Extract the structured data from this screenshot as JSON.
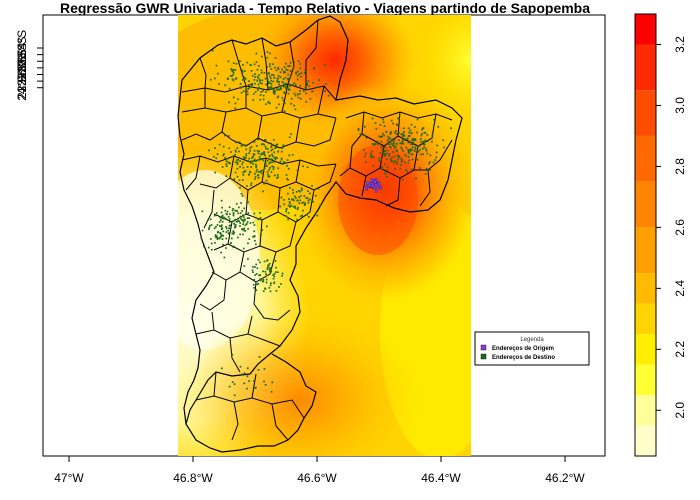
{
  "title": "Regressão GWR Univariada - Tempo Relativo - Viagens partindo de Sapopemba",
  "x_axis": {
    "ticks": [
      {
        "value": -47.0,
        "label": "47°W"
      },
      {
        "value": -46.8,
        "label": "46.8°W"
      },
      {
        "value": -46.6,
        "label": "46.6°W"
      },
      {
        "value": -46.4,
        "label": "46.4°W"
      },
      {
        "value": -46.2,
        "label": "46.2°W"
      }
    ]
  },
  "y_axis": {
    "ticks": [
      {
        "value": -23.4,
        "label": "23.4°S"
      },
      {
        "value": -23.5,
        "label": "23.5°S"
      },
      {
        "value": -23.6,
        "label": "23.6°S"
      },
      {
        "value": -23.7,
        "label": "23.7°S"
      },
      {
        "value": -23.8,
        "label": "23.8°S"
      },
      {
        "value": -23.9,
        "label": "23.9°S"
      },
      {
        "value": -24.0,
        "label": "24°S"
      }
    ]
  },
  "legend": {
    "title": "Legenda",
    "items": [
      {
        "label": "Endereços de Origem",
        "color": "#8b3fd9"
      },
      {
        "label": "Endereços de Destino",
        "color": "#1e6b1e"
      }
    ]
  },
  "colorbar": {
    "min": 1.85,
    "max": 3.3,
    "colors": [
      "#ffffcc",
      "#ffff99",
      "#ffff33",
      "#ffee00",
      "#ffd400",
      "#ffbb00",
      "#ff9f00",
      "#ff8500",
      "#ff6a00",
      "#ff4d00",
      "#ff2a00",
      "#ff0000"
    ],
    "breaks": [
      1.85,
      1.95,
      2.05,
      2.15,
      2.25,
      2.35,
      2.45,
      2.6,
      2.75,
      2.9,
      3.05,
      3.2,
      3.3
    ],
    "tick_values": [
      2.0,
      2.2,
      2.4,
      2.6,
      2.8,
      3.0,
      3.2
    ],
    "tick_labels": [
      "2.0",
      "2.2",
      "2.4",
      "2.6",
      "2.8",
      "3.0",
      "3.2"
    ]
  }
}
